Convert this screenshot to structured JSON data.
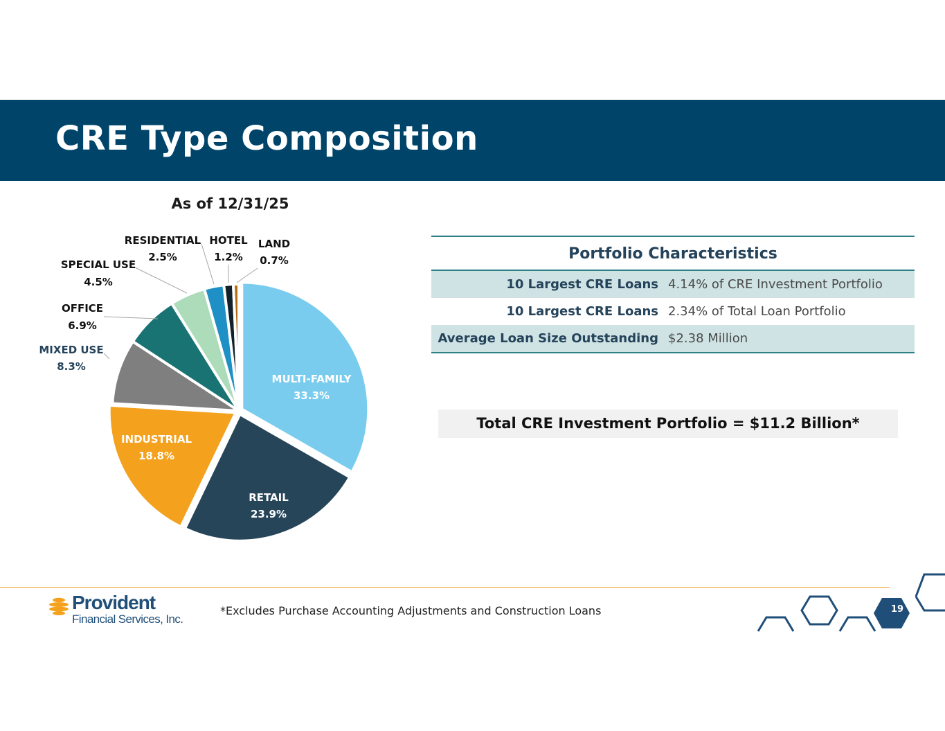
{
  "page": {
    "title": "CRE Type Composition",
    "footnote": "*Excludes Purchase Accounting Adjustments and Construction Loans",
    "page_number": "19",
    "logo": {
      "name": "Provident",
      "subtitle": "Financial Services, Inc."
    }
  },
  "portfolio": {
    "heading": "Portfolio Characteristics",
    "rows": [
      {
        "label": "10 Largest CRE Loans",
        "value": "4.14% of CRE Investment Portfolio"
      },
      {
        "label": "10 Largest CRE Loans",
        "value": "2.34% of Total Loan Portfolio"
      },
      {
        "label": "Average Loan Size Outstanding",
        "value": "$2.38 Million"
      }
    ],
    "total": "Total CRE Investment Portfolio = $11.2 Billion*"
  },
  "chart_data": {
    "type": "pie",
    "title": "As of 12/31/25",
    "slices": [
      {
        "label": "MULTI-FAMILY",
        "value": 33.3,
        "display": "33.3%",
        "color": "#79cced",
        "label_color": "#ffffff",
        "inside": true
      },
      {
        "label": "RETAIL",
        "value": 23.9,
        "display": "23.9%",
        "color": "#264559",
        "label_color": "#ffffff",
        "inside": true
      },
      {
        "label": "INDUSTRIAL",
        "value": 18.8,
        "display": "18.8%",
        "color": "#f4a11d",
        "label_color": "#ffffff",
        "inside": true
      },
      {
        "label": "MIXED USE",
        "value": 8.3,
        "display": "8.3%",
        "color": "#7f7f7f",
        "label_color": "#25435a",
        "inside": false
      },
      {
        "label": "OFFICE",
        "value": 6.9,
        "display": "6.9%",
        "color": "#197373",
        "label_color": "#111111",
        "inside": false
      },
      {
        "label": "SPECIAL USE",
        "value": 4.5,
        "display": "4.5%",
        "color": "#addcba",
        "label_color": "#111111",
        "inside": false
      },
      {
        "label": "RESIDENTIAL",
        "value": 2.5,
        "display": "2.5%",
        "color": "#1e90c5",
        "label_color": "#111111",
        "inside": false
      },
      {
        "label": "HOTEL",
        "value": 1.2,
        "display": "1.2%",
        "color": "#13212b",
        "label_color": "#111111",
        "inside": false
      },
      {
        "label": "LAND",
        "value": 0.7,
        "display": "0.7%",
        "color": "#b66a12",
        "label_color": "#111111",
        "inside": false
      }
    ],
    "start": "12 o'clock",
    "direction": "clockwise",
    "exploded": [
      "MULTI-FAMILY",
      "RETAIL",
      "INDUSTRIAL"
    ]
  }
}
